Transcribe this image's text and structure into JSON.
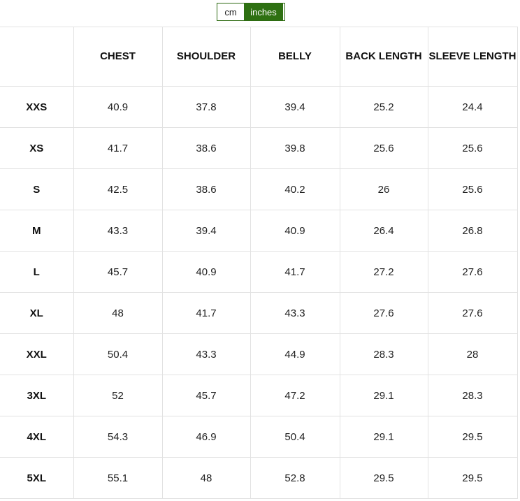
{
  "unit_toggle": {
    "options": [
      "cm",
      "inches"
    ],
    "selected": "inches",
    "accent_color": "#2e7012"
  },
  "table": {
    "headers": [
      "",
      "CHEST",
      "SHOULDER",
      "BELLY",
      "BACK LENGTH",
      "SLEEVE LENGTH"
    ],
    "rows": [
      [
        "XXS",
        "40.9",
        "37.8",
        "39.4",
        "25.2",
        "24.4"
      ],
      [
        "XS",
        "41.7",
        "38.6",
        "39.8",
        "25.6",
        "25.6"
      ],
      [
        "S",
        "42.5",
        "38.6",
        "40.2",
        "26",
        "25.6"
      ],
      [
        "M",
        "43.3",
        "39.4",
        "40.9",
        "26.4",
        "26.8"
      ],
      [
        "L",
        "45.7",
        "40.9",
        "41.7",
        "27.2",
        "27.6"
      ],
      [
        "XL",
        "48",
        "41.7",
        "43.3",
        "27.6",
        "27.6"
      ],
      [
        "XXL",
        "50.4",
        "43.3",
        "44.9",
        "28.3",
        "28"
      ],
      [
        "3XL",
        "52",
        "45.7",
        "47.2",
        "29.1",
        "28.3"
      ],
      [
        "4XL",
        "54.3",
        "46.9",
        "50.4",
        "29.1",
        "29.5"
      ],
      [
        "5XL",
        "55.1",
        "48",
        "52.8",
        "29.5",
        "29.5"
      ]
    ]
  }
}
